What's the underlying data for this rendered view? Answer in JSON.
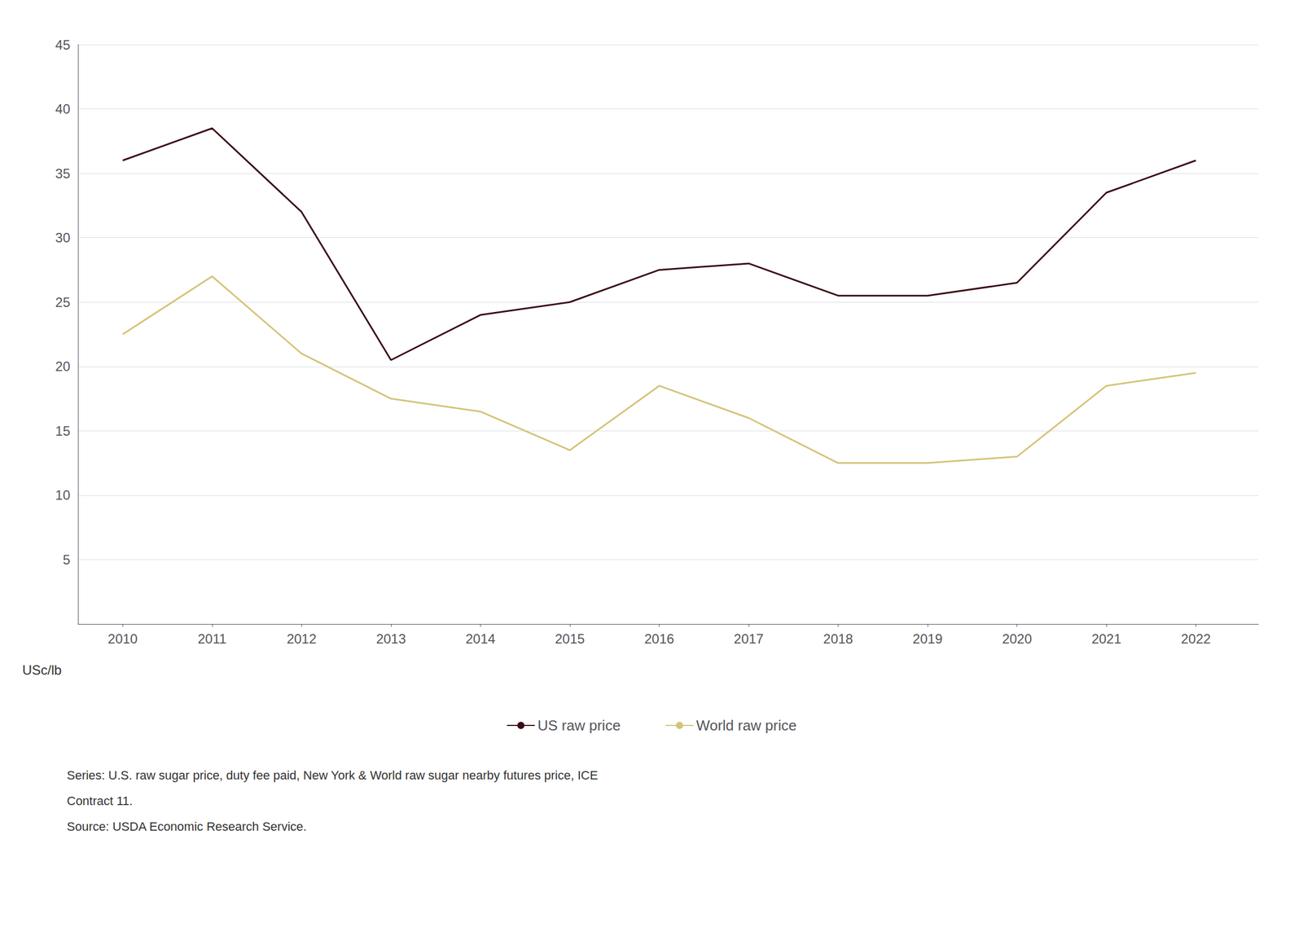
{
  "chart_data": {
    "type": "line",
    "ylabel": "USc/lb",
    "annotations": [
      "Series: U.S. raw sugar price, duty fee paid, New York & World raw sugar nearby futures price, ICE",
      "Contract 11.",
      "Source: USDA Economic Research Service."
    ],
    "x": [
      2010,
      2011,
      2012,
      2013,
      2014,
      2015,
      2016,
      2017,
      2018,
      2019,
      2020,
      2021,
      2022
    ],
    "series": [
      {
        "name": "US raw price",
        "color": "#3b0a14",
        "values": [
          36.0,
          38.5,
          32.0,
          20.5,
          24.0,
          25.0,
          27.5,
          28.0,
          25.5,
          25.5,
          26.5,
          33.5,
          36.0
        ]
      },
      {
        "name": "World raw price",
        "color": "#d4c47a",
        "values": [
          22.5,
          27.0,
          21.0,
          17.5,
          16.5,
          13.5,
          18.5,
          16.0,
          12.5,
          12.5,
          13.0,
          18.5,
          19.5
        ]
      }
    ],
    "xlim": [
      2009.5,
      2022.7
    ],
    "xticks": [
      2010,
      2011,
      2012,
      2013,
      2014,
      2015,
      2016,
      2017,
      2018,
      2019,
      2020,
      2021,
      2022
    ],
    "ylim": [
      0,
      45
    ],
    "yticks": [
      5,
      10,
      15,
      20,
      25,
      30,
      35,
      40,
      45
    ],
    "grid": true,
    "legend": "bottom"
  }
}
